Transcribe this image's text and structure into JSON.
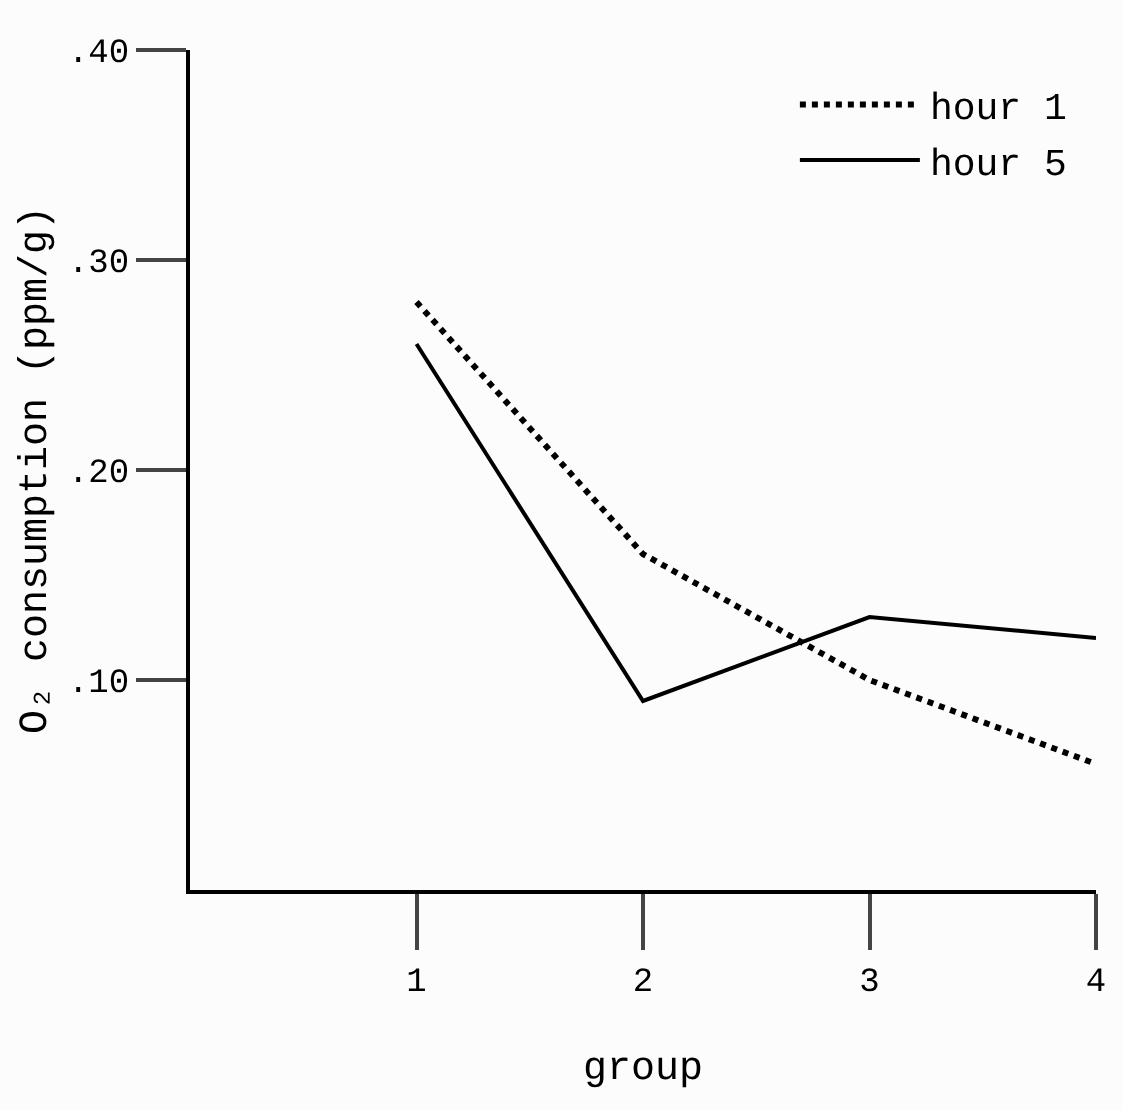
{
  "chart_data": {
    "type": "line",
    "xlabel": "group",
    "ylabel": "O₂ consumption (ppm/g)",
    "x": [
      1,
      2,
      3,
      4
    ],
    "series": [
      {
        "name": "hour 1",
        "color": "#000000",
        "line_style": "dotted",
        "values": [
          0.28,
          0.16,
          0.1,
          0.06
        ]
      },
      {
        "name": "hour 5",
        "color": "#000000",
        "line_style": "solid",
        "values": [
          0.26,
          0.09,
          0.13,
          0.12
        ]
      }
    ],
    "xlim": [
      0,
      4
    ],
    "xticks": [
      1,
      2,
      3,
      4
    ],
    "ylim": [
      0,
      0.4
    ],
    "yticks": [
      {
        "value": 0.1,
        "label": ".10"
      },
      {
        "value": 0.2,
        "label": ".20"
      },
      {
        "value": 0.3,
        "label": ".30"
      },
      {
        "value": 0.4,
        "label": ".40"
      }
    ],
    "legend": "top right",
    "marker": "none"
  }
}
